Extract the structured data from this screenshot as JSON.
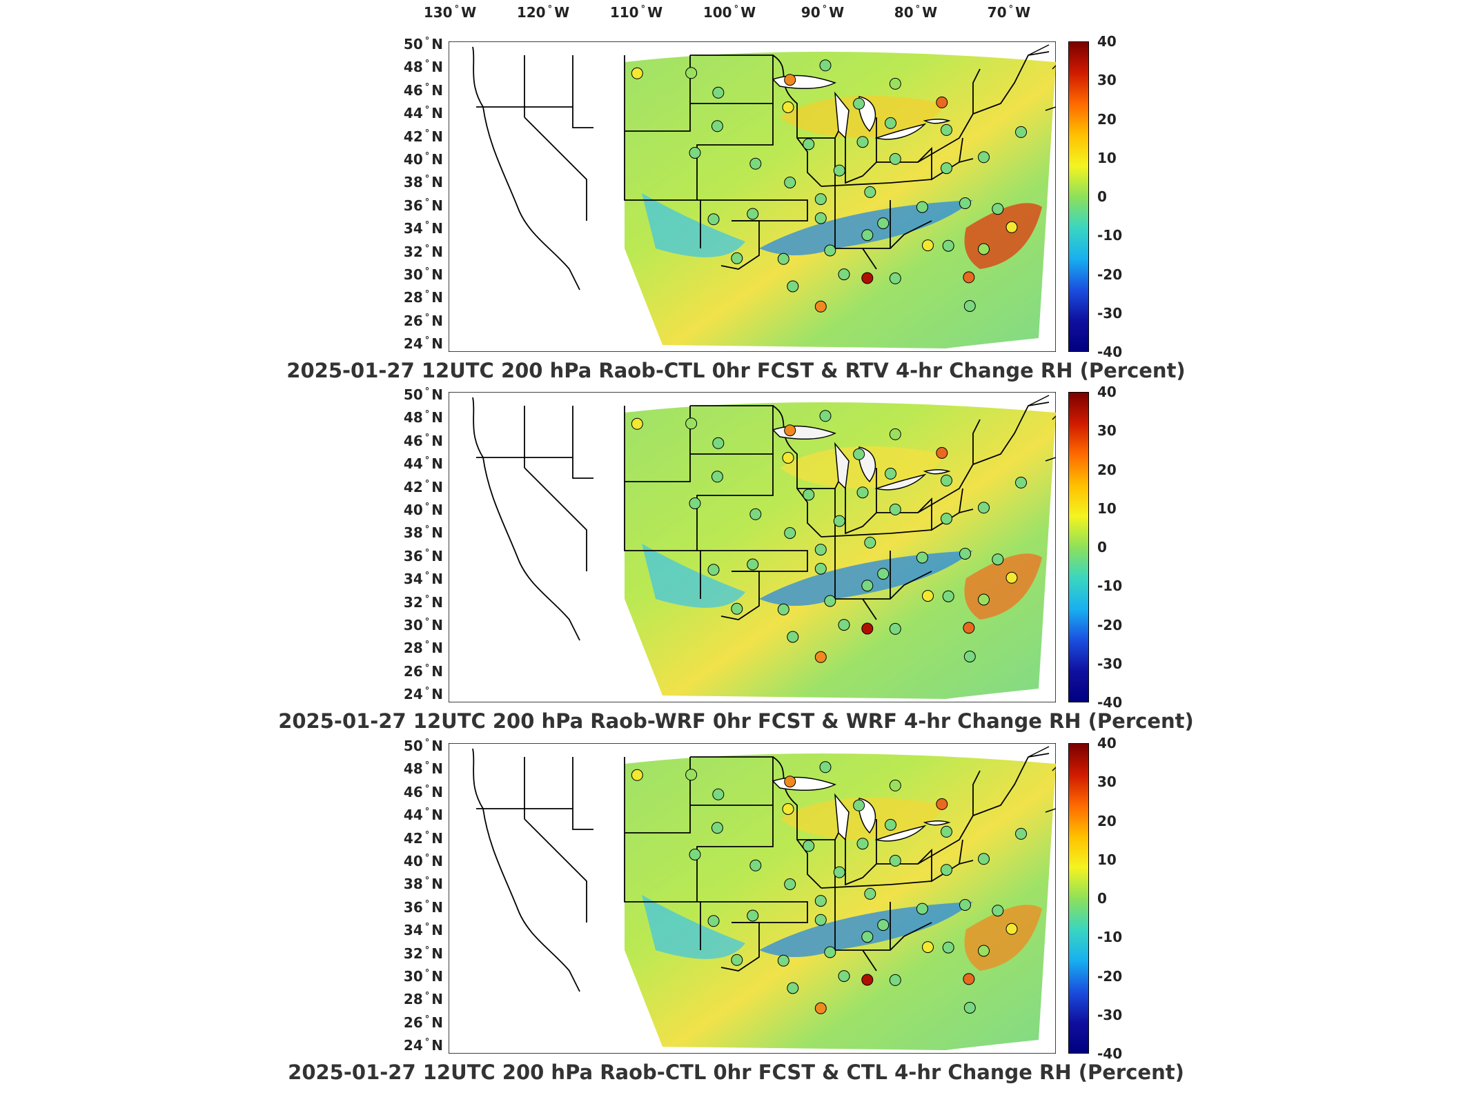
{
  "lon_labels": [
    {
      "deg": "130",
      "dir": "W"
    },
    {
      "deg": "120",
      "dir": "W"
    },
    {
      "deg": "110",
      "dir": "W"
    },
    {
      "deg": "100",
      "dir": "W"
    },
    {
      "deg": "90",
      "dir": "W"
    },
    {
      "deg": "80",
      "dir": "W"
    },
    {
      "deg": "70",
      "dir": "W"
    }
  ],
  "lat_labels": [
    {
      "deg": "50",
      "dir": "N"
    },
    {
      "deg": "48",
      "dir": "N"
    },
    {
      "deg": "46",
      "dir": "N"
    },
    {
      "deg": "44",
      "dir": "N"
    },
    {
      "deg": "42",
      "dir": "N"
    },
    {
      "deg": "40",
      "dir": "N"
    },
    {
      "deg": "38",
      "dir": "N"
    },
    {
      "deg": "36",
      "dir": "N"
    },
    {
      "deg": "34",
      "dir": "N"
    },
    {
      "deg": "32",
      "dir": "N"
    },
    {
      "deg": "30",
      "dir": "N"
    },
    {
      "deg": "28",
      "dir": "N"
    },
    {
      "deg": "26",
      "dir": "N"
    },
    {
      "deg": "24",
      "dir": "N"
    }
  ],
  "colorbar": {
    "ticks": [
      "40",
      "30",
      "20",
      "10",
      "0",
      "-10",
      "-20",
      "-30",
      "-40"
    ],
    "colors": [
      "#7a0000",
      "#d01a00",
      "#ff6a00",
      "#ffc000",
      "#f4f420",
      "#8ee05a",
      "#3ad6c0",
      "#18b0f0",
      "#1a50e0",
      "#1010a0",
      "#000080"
    ]
  },
  "panels": [
    {
      "title": "2025-01-27 12UTC 200 hPa Raob-CTL 0hr FCST & RTV 4-hr Change RH (Percent)"
    },
    {
      "title": "2025-01-27 12UTC 200 hPa Raob-WRF 0hr FCST & WRF 4-hr Change RH (Percent)"
    },
    {
      "title": "2025-01-27 12UTC 200 hPa Raob-CTL 0hr FCST & CTL 4-hr Change RH (Percent)"
    }
  ],
  "stations": [
    {
      "lon": -117.2,
      "lat": 47.6,
      "color": "#f4e830"
    },
    {
      "lon": -111.4,
      "lat": 47.5,
      "color": "#9ae060"
    },
    {
      "lon": -100.8,
      "lat": 46.8,
      "color": "#f08a20"
    },
    {
      "lon": -97.0,
      "lat": 48.0,
      "color": "#7ad880"
    },
    {
      "lon": -108.5,
      "lat": 45.8,
      "color": "#7ad880"
    },
    {
      "lon": -101.0,
      "lat": 44.5,
      "color": "#f4e830"
    },
    {
      "lon": -93.4,
      "lat": 44.8,
      "color": "#7ad880"
    },
    {
      "lon": -84.5,
      "lat": 45.0,
      "color": "#e86a20"
    },
    {
      "lon": -89.5,
      "lat": 46.5,
      "color": "#9ae060"
    },
    {
      "lon": -108.6,
      "lat": 43.0,
      "color": "#7ad880"
    },
    {
      "lon": -98.8,
      "lat": 41.4,
      "color": "#7ad880"
    },
    {
      "lon": -93.0,
      "lat": 41.6,
      "color": "#7ad880"
    },
    {
      "lon": -90.0,
      "lat": 43.2,
      "color": "#7ad880"
    },
    {
      "lon": -84.0,
      "lat": 42.7,
      "color": "#7ad880"
    },
    {
      "lon": -76.0,
      "lat": 42.7,
      "color": "#7ad880"
    },
    {
      "lon": -111.0,
      "lat": 40.8,
      "color": "#7ad880"
    },
    {
      "lon": -104.5,
      "lat": 39.8,
      "color": "#7ad880"
    },
    {
      "lon": -100.8,
      "lat": 38.2,
      "color": "#7ad880"
    },
    {
      "lon": -95.5,
      "lat": 39.2,
      "color": "#7ad880"
    },
    {
      "lon": -89.5,
      "lat": 40.2,
      "color": "#7ad880"
    },
    {
      "lon": -84.0,
      "lat": 39.5,
      "color": "#7ad880"
    },
    {
      "lon": -80.0,
      "lat": 40.5,
      "color": "#7ad880"
    },
    {
      "lon": -109.0,
      "lat": 35.2,
      "color": "#7ad880"
    },
    {
      "lon": -104.8,
      "lat": 35.6,
      "color": "#7ad880"
    },
    {
      "lon": -97.5,
      "lat": 36.8,
      "color": "#7ad880"
    },
    {
      "lon": -97.5,
      "lat": 35.2,
      "color": "#7ad880"
    },
    {
      "lon": -92.2,
      "lat": 37.4,
      "color": "#7ad880"
    },
    {
      "lon": -90.8,
      "lat": 34.8,
      "color": "#7ad880"
    },
    {
      "lon": -86.6,
      "lat": 36.2,
      "color": "#7ad880"
    },
    {
      "lon": -82.0,
      "lat": 36.6,
      "color": "#7ad880"
    },
    {
      "lon": -78.5,
      "lat": 36.2,
      "color": "#7ad880"
    },
    {
      "lon": -77.0,
      "lat": 34.7,
      "color": "#f4e830"
    },
    {
      "lon": -96.5,
      "lat": 32.5,
      "color": "#7ad880"
    },
    {
      "lon": -101.5,
      "lat": 31.8,
      "color": "#7ad880"
    },
    {
      "lon": -106.5,
      "lat": 31.9,
      "color": "#7ad880"
    },
    {
      "lon": -86.0,
      "lat": 33.0,
      "color": "#f4e830"
    },
    {
      "lon": -83.8,
      "lat": 33.0,
      "color": "#7ad880"
    },
    {
      "lon": -80.0,
      "lat": 32.8,
      "color": "#9ae060"
    },
    {
      "lon": -92.5,
      "lat": 30.2,
      "color": "#b01000"
    },
    {
      "lon": -89.5,
      "lat": 30.2,
      "color": "#7ad880"
    },
    {
      "lon": -81.6,
      "lat": 30.4,
      "color": "#e86a20"
    },
    {
      "lon": -97.5,
      "lat": 27.8,
      "color": "#f08a20"
    },
    {
      "lon": -100.5,
      "lat": 29.5,
      "color": "#7ad880"
    },
    {
      "lon": -81.5,
      "lat": 28.0,
      "color": "#7ad880"
    },
    {
      "lon": -92.5,
      "lat": 33.8,
      "color": "#7ad880"
    },
    {
      "lon": -95.0,
      "lat": 30.5,
      "color": "#7ad880"
    }
  ]
}
